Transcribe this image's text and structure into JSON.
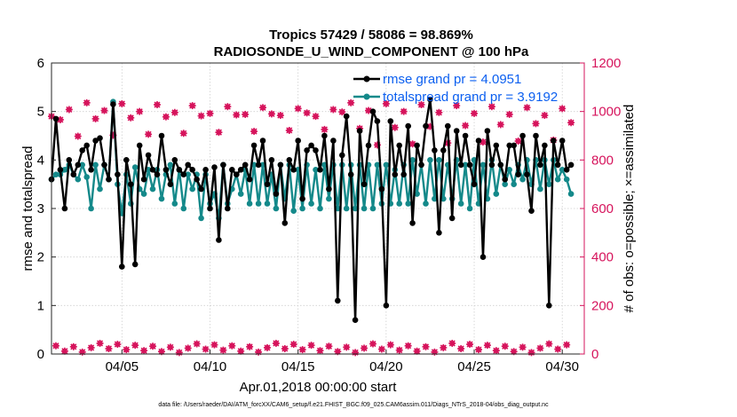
{
  "chart_data": {
    "type": "line",
    "title_line1": "Tropics 57429 / 58086 = 98.869%",
    "title_line2": "RADIOSONDE_U_WIND_COMPONENT @ 100 hPa",
    "ylabel_left": "rmse and totalspread",
    "ylabel_right": "# of obs: o=possible; ×=assimilated",
    "xlabel": "Apr.01,2018 00:00:00 start",
    "footer": "data file: /Users/raeder/DAI/ATM_forcXX/CAM6_setup/f.e21.FHIST_BGC.f09_025.CAM6assim.011/Diags_NTrS_2018-04/obs_diag_output.nc",
    "xlim": [
      1,
      31.25
    ],
    "ylim_left": [
      0,
      6
    ],
    "ylim_right": [
      0,
      1200
    ],
    "y_ticks_left": [
      "0",
      "1",
      "2",
      "3",
      "4",
      "5",
      "6"
    ],
    "y_ticks_right": [
      "0",
      "200",
      "400",
      "600",
      "800",
      "1000",
      "1200"
    ],
    "x_ticks": [
      {
        "value": 5,
        "label": "04/05"
      },
      {
        "value": 10,
        "label": "04/10"
      },
      {
        "value": 15,
        "label": "04/15"
      },
      {
        "value": 20,
        "label": "04/20"
      },
      {
        "value": 25,
        "label": "04/25"
      },
      {
        "value": 30,
        "label": "04/30"
      }
    ],
    "colors": {
      "rmse": "#000000",
      "spread": "#14898a",
      "obs": "#d6145c",
      "legend_text": "#0b5ff0"
    },
    "x_start": 1.0,
    "x_step": 0.25,
    "series": [
      {
        "name": "rmse grand pr = 4.0951",
        "axis": "left",
        "values": [
          3.6,
          4.85,
          3.8,
          3.0,
          4.0,
          3.7,
          3.9,
          4.2,
          4.3,
          3.8,
          4.4,
          4.45,
          3.9,
          3.6,
          5.15,
          3.7,
          1.8,
          4.0,
          3.5,
          1.85,
          4.3,
          3.6,
          4.1,
          3.8,
          3.7,
          4.5,
          3.8,
          3.5,
          4.0,
          3.8,
          3.7,
          3.9,
          3.8,
          3.6,
          3.4,
          3.8,
          3.0,
          3.85,
          2.35,
          3.9,
          3.0,
          3.8,
          3.7,
          3.8,
          3.9,
          3.6,
          4.3,
          3.9,
          4.4,
          3.5,
          4.0,
          3.3,
          3.9,
          2.7,
          4.0,
          3.8,
          4.4,
          3.2,
          4.2,
          4.3,
          4.2,
          3.8,
          4.5,
          3.4,
          4.4,
          1.1,
          4.1,
          4.9,
          3.7,
          0.7,
          4.6,
          3.5,
          4.3,
          5.0,
          4.8,
          3.4,
          1.0,
          4.8,
          3.7,
          4.3,
          3.7,
          4.7,
          2.7,
          4.3,
          3.9,
          4.7,
          5.25,
          4.2,
          2.5,
          4.2,
          4.7,
          2.8,
          4.6,
          3.9,
          4.5,
          3.9,
          3.5,
          4.4,
          2.0,
          4.6,
          3.9,
          4.3,
          3.9,
          3.6,
          4.3,
          4.3,
          3.7,
          4.5,
          3.7,
          2.95,
          4.5,
          3.9,
          4.3,
          1.0,
          4.4,
          3.9,
          4.4,
          3.8,
          3.9
        ]
      },
      {
        "name": "totalspread grand pr = 3.9192",
        "axis": "left",
        "values": [
          3.6,
          3.7,
          3.7,
          3.8,
          3.9,
          3.7,
          3.6,
          3.9,
          3.65,
          3.0,
          3.9,
          3.4,
          3.9,
          3.6,
          5.2,
          3.5,
          2.9,
          3.7,
          3.1,
          3.85,
          3.4,
          3.3,
          3.8,
          3.4,
          3.8,
          3.2,
          3.7,
          3.9,
          3.1,
          3.8,
          3.0,
          3.7,
          3.4,
          3.7,
          2.8,
          3.7,
          3.1,
          3.3,
          2.8,
          3.9,
          3.1,
          3.4,
          3.7,
          3.3,
          3.8,
          3.1,
          3.9,
          3.1,
          3.9,
          3.1,
          3.7,
          3.0,
          3.9,
          3.2,
          3.9,
          2.95,
          3.8,
          3.0,
          3.9,
          3.1,
          3.8,
          3.0,
          3.9,
          3.2,
          3.9,
          3.0,
          3.9,
          3.0,
          3.9,
          3.0,
          3.9,
          3.0,
          3.9,
          3.0,
          3.9,
          3.1,
          3.9,
          3.1,
          3.8,
          3.1,
          3.9,
          3.1,
          4.0,
          3.3,
          3.9,
          3.1,
          4.0,
          3.2,
          4.0,
          3.2,
          3.9,
          3.2,
          4.0,
          3.1,
          3.9,
          3.0,
          4.0,
          3.1,
          3.9,
          3.2,
          4.0,
          3.3,
          3.9,
          3.5,
          3.8,
          3.5,
          3.9,
          3.6,
          4.0,
          3.5,
          4.0,
          3.4,
          4.0,
          3.5,
          4.0,
          3.6,
          3.8,
          3.6,
          3.3
        ]
      }
    ]
  },
  "legend": {
    "rmse_label": "rmse grand pr = 4.0951",
    "spread_label": "totalspread grand pr = 3.9192"
  }
}
